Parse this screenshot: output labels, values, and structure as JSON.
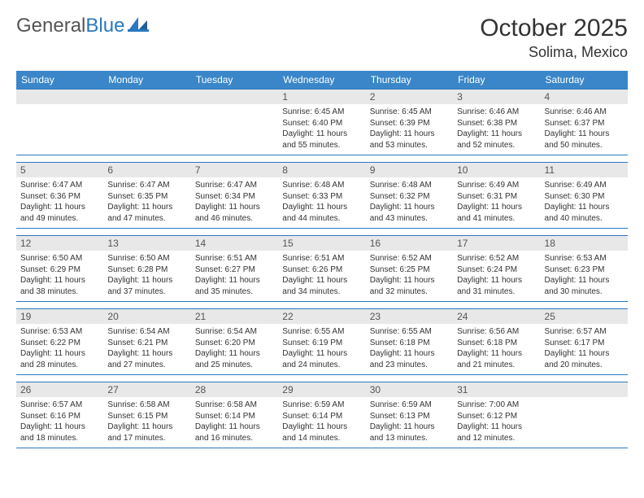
{
  "logo": {
    "word1": "General",
    "word2": "Blue"
  },
  "title": "October 2025",
  "location": "Solima, Mexico",
  "colors": {
    "header_bar": "#3a86c8",
    "week_border": "#2a78c0",
    "daynum_bg": "#e8e8e8",
    "text": "#333333",
    "logo_gray": "#555555",
    "logo_blue": "#2a78c0"
  },
  "weekdays": [
    "Sunday",
    "Monday",
    "Tuesday",
    "Wednesday",
    "Thursday",
    "Friday",
    "Saturday"
  ],
  "weeks": [
    [
      {
        "n": "",
        "sr": "",
        "ss": "",
        "dl": ""
      },
      {
        "n": "",
        "sr": "",
        "ss": "",
        "dl": ""
      },
      {
        "n": "",
        "sr": "",
        "ss": "",
        "dl": ""
      },
      {
        "n": "1",
        "sr": "Sunrise: 6:45 AM",
        "ss": "Sunset: 6:40 PM",
        "dl": "Daylight: 11 hours and 55 minutes."
      },
      {
        "n": "2",
        "sr": "Sunrise: 6:45 AM",
        "ss": "Sunset: 6:39 PM",
        "dl": "Daylight: 11 hours and 53 minutes."
      },
      {
        "n": "3",
        "sr": "Sunrise: 6:46 AM",
        "ss": "Sunset: 6:38 PM",
        "dl": "Daylight: 11 hours and 52 minutes."
      },
      {
        "n": "4",
        "sr": "Sunrise: 6:46 AM",
        "ss": "Sunset: 6:37 PM",
        "dl": "Daylight: 11 hours and 50 minutes."
      }
    ],
    [
      {
        "n": "5",
        "sr": "Sunrise: 6:47 AM",
        "ss": "Sunset: 6:36 PM",
        "dl": "Daylight: 11 hours and 49 minutes."
      },
      {
        "n": "6",
        "sr": "Sunrise: 6:47 AM",
        "ss": "Sunset: 6:35 PM",
        "dl": "Daylight: 11 hours and 47 minutes."
      },
      {
        "n": "7",
        "sr": "Sunrise: 6:47 AM",
        "ss": "Sunset: 6:34 PM",
        "dl": "Daylight: 11 hours and 46 minutes."
      },
      {
        "n": "8",
        "sr": "Sunrise: 6:48 AM",
        "ss": "Sunset: 6:33 PM",
        "dl": "Daylight: 11 hours and 44 minutes."
      },
      {
        "n": "9",
        "sr": "Sunrise: 6:48 AM",
        "ss": "Sunset: 6:32 PM",
        "dl": "Daylight: 11 hours and 43 minutes."
      },
      {
        "n": "10",
        "sr": "Sunrise: 6:49 AM",
        "ss": "Sunset: 6:31 PM",
        "dl": "Daylight: 11 hours and 41 minutes."
      },
      {
        "n": "11",
        "sr": "Sunrise: 6:49 AM",
        "ss": "Sunset: 6:30 PM",
        "dl": "Daylight: 11 hours and 40 minutes."
      }
    ],
    [
      {
        "n": "12",
        "sr": "Sunrise: 6:50 AM",
        "ss": "Sunset: 6:29 PM",
        "dl": "Daylight: 11 hours and 38 minutes."
      },
      {
        "n": "13",
        "sr": "Sunrise: 6:50 AM",
        "ss": "Sunset: 6:28 PM",
        "dl": "Daylight: 11 hours and 37 minutes."
      },
      {
        "n": "14",
        "sr": "Sunrise: 6:51 AM",
        "ss": "Sunset: 6:27 PM",
        "dl": "Daylight: 11 hours and 35 minutes."
      },
      {
        "n": "15",
        "sr": "Sunrise: 6:51 AM",
        "ss": "Sunset: 6:26 PM",
        "dl": "Daylight: 11 hours and 34 minutes."
      },
      {
        "n": "16",
        "sr": "Sunrise: 6:52 AM",
        "ss": "Sunset: 6:25 PM",
        "dl": "Daylight: 11 hours and 32 minutes."
      },
      {
        "n": "17",
        "sr": "Sunrise: 6:52 AM",
        "ss": "Sunset: 6:24 PM",
        "dl": "Daylight: 11 hours and 31 minutes."
      },
      {
        "n": "18",
        "sr": "Sunrise: 6:53 AM",
        "ss": "Sunset: 6:23 PM",
        "dl": "Daylight: 11 hours and 30 minutes."
      }
    ],
    [
      {
        "n": "19",
        "sr": "Sunrise: 6:53 AM",
        "ss": "Sunset: 6:22 PM",
        "dl": "Daylight: 11 hours and 28 minutes."
      },
      {
        "n": "20",
        "sr": "Sunrise: 6:54 AM",
        "ss": "Sunset: 6:21 PM",
        "dl": "Daylight: 11 hours and 27 minutes."
      },
      {
        "n": "21",
        "sr": "Sunrise: 6:54 AM",
        "ss": "Sunset: 6:20 PM",
        "dl": "Daylight: 11 hours and 25 minutes."
      },
      {
        "n": "22",
        "sr": "Sunrise: 6:55 AM",
        "ss": "Sunset: 6:19 PM",
        "dl": "Daylight: 11 hours and 24 minutes."
      },
      {
        "n": "23",
        "sr": "Sunrise: 6:55 AM",
        "ss": "Sunset: 6:18 PM",
        "dl": "Daylight: 11 hours and 23 minutes."
      },
      {
        "n": "24",
        "sr": "Sunrise: 6:56 AM",
        "ss": "Sunset: 6:18 PM",
        "dl": "Daylight: 11 hours and 21 minutes."
      },
      {
        "n": "25",
        "sr": "Sunrise: 6:57 AM",
        "ss": "Sunset: 6:17 PM",
        "dl": "Daylight: 11 hours and 20 minutes."
      }
    ],
    [
      {
        "n": "26",
        "sr": "Sunrise: 6:57 AM",
        "ss": "Sunset: 6:16 PM",
        "dl": "Daylight: 11 hours and 18 minutes."
      },
      {
        "n": "27",
        "sr": "Sunrise: 6:58 AM",
        "ss": "Sunset: 6:15 PM",
        "dl": "Daylight: 11 hours and 17 minutes."
      },
      {
        "n": "28",
        "sr": "Sunrise: 6:58 AM",
        "ss": "Sunset: 6:14 PM",
        "dl": "Daylight: 11 hours and 16 minutes."
      },
      {
        "n": "29",
        "sr": "Sunrise: 6:59 AM",
        "ss": "Sunset: 6:14 PM",
        "dl": "Daylight: 11 hours and 14 minutes."
      },
      {
        "n": "30",
        "sr": "Sunrise: 6:59 AM",
        "ss": "Sunset: 6:13 PM",
        "dl": "Daylight: 11 hours and 13 minutes."
      },
      {
        "n": "31",
        "sr": "Sunrise: 7:00 AM",
        "ss": "Sunset: 6:12 PM",
        "dl": "Daylight: 11 hours and 12 minutes."
      },
      {
        "n": "",
        "sr": "",
        "ss": "",
        "dl": ""
      }
    ]
  ]
}
